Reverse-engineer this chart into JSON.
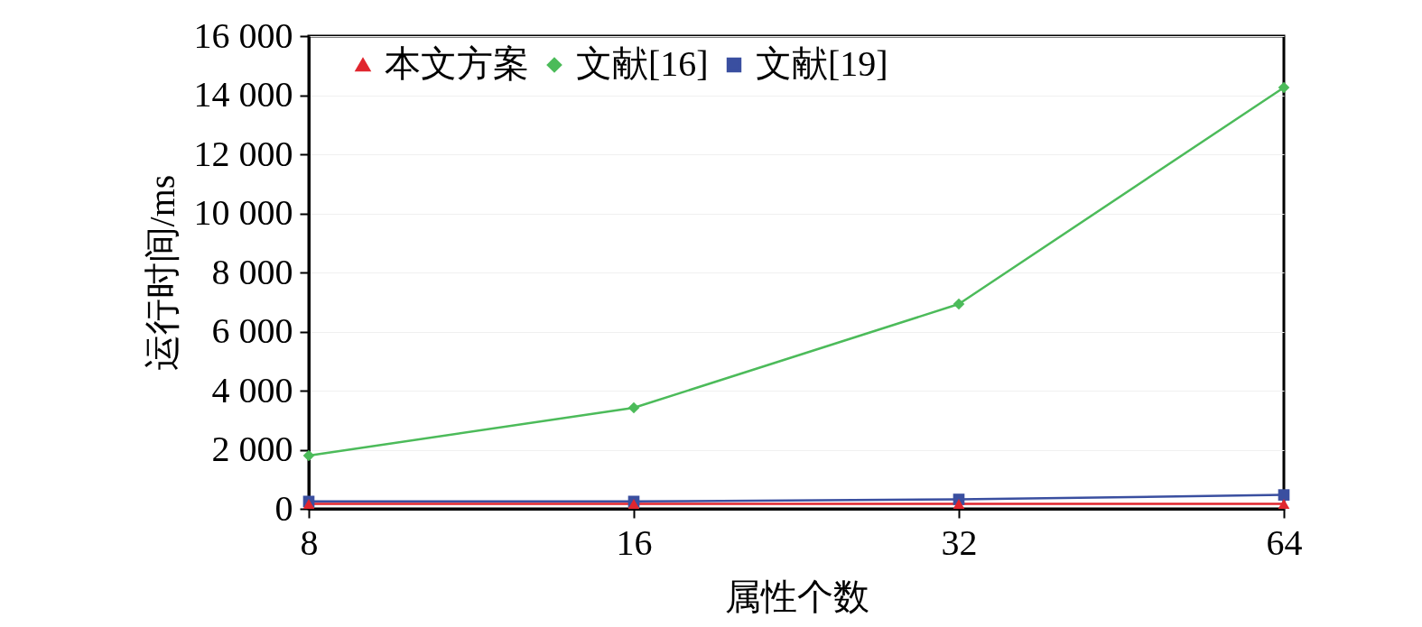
{
  "chart_data": {
    "type": "line",
    "xlabel": "属性个数",
    "ylabel": "运行时间/ms",
    "categories": [
      "8",
      "16",
      "32",
      "64"
    ],
    "series": [
      {
        "name": "本文方案",
        "color": "#e0262e",
        "marker": "triangle",
        "values": [
          170,
          170,
          170,
          170
        ]
      },
      {
        "name": "文献[16]",
        "color": "#4cbb5a",
        "marker": "diamond",
        "values": [
          1800,
          3420,
          6930,
          14260
        ]
      },
      {
        "name": "文献[19]",
        "color": "#3a4fa0",
        "marker": "square",
        "values": [
          250,
          250,
          320,
          470
        ]
      }
    ],
    "ylim": [
      0,
      16000
    ],
    "yticks": [
      {
        "value": 0,
        "label": "0"
      },
      {
        "value": 2000,
        "label": "2 000"
      },
      {
        "value": 4000,
        "label": "4 000"
      },
      {
        "value": 6000,
        "label": "6 000"
      },
      {
        "value": 8000,
        "label": "8 000"
      },
      {
        "value": 10000,
        "label": "10 000"
      },
      {
        "value": 12000,
        "label": "12 000"
      },
      {
        "value": 14000,
        "label": "14 000"
      },
      {
        "value": 16000,
        "label": "16 000"
      }
    ],
    "grid": "y",
    "legend": "top",
    "line_style": "solid"
  }
}
